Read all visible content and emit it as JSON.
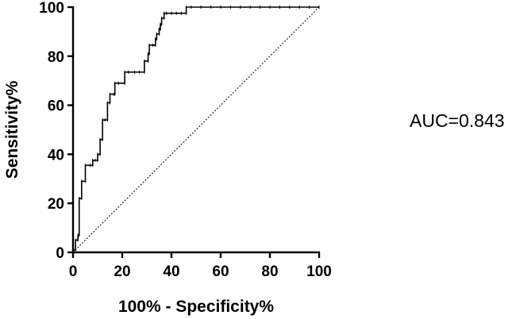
{
  "chart_data": {
    "type": "line",
    "title": "",
    "xlabel": "100% - Specificity%",
    "ylabel": "Sensitivity%",
    "xlim": [
      0,
      100
    ],
    "ylim": [
      0,
      100
    ],
    "x_ticks": [
      0,
      20,
      40,
      60,
      80,
      100
    ],
    "y_ticks": [
      0,
      20,
      40,
      60,
      80,
      100
    ],
    "x_tick_labels": [
      "0",
      "20",
      "40",
      "60",
      "80",
      "100"
    ],
    "y_tick_labels": [
      "0",
      "20",
      "40",
      "60",
      "80",
      "100"
    ],
    "grid": false,
    "legend": "none",
    "annotation": "AUC=0.843",
    "series": [
      {
        "type": "roc",
        "style": "step-with-markers",
        "color": "#000000",
        "points": [
          [
            0,
            0
          ],
          [
            0,
            1
          ],
          [
            1,
            1
          ],
          [
            1,
            3
          ],
          [
            1,
            5
          ],
          [
            2,
            5
          ],
          [
            2,
            7
          ],
          [
            2.5,
            7
          ],
          [
            2.5,
            14
          ],
          [
            2.5,
            22
          ],
          [
            3.5,
            22
          ],
          [
            3.5,
            25
          ],
          [
            3.5,
            29
          ],
          [
            5,
            29
          ],
          [
            5,
            33
          ],
          [
            5,
            35.5
          ],
          [
            7,
            35.5
          ],
          [
            8,
            35.5
          ],
          [
            8,
            37.5
          ],
          [
            9,
            37.5
          ],
          [
            10,
            37.5
          ],
          [
            10,
            40
          ],
          [
            11,
            40
          ],
          [
            11,
            42
          ],
          [
            11,
            46
          ],
          [
            12,
            46
          ],
          [
            12,
            51
          ],
          [
            12,
            54
          ],
          [
            13,
            54
          ],
          [
            14,
            54
          ],
          [
            14,
            58
          ],
          [
            14,
            61
          ],
          [
            15,
            61
          ],
          [
            15,
            63
          ],
          [
            15,
            64.5
          ],
          [
            16.5,
            64.5
          ],
          [
            17,
            64.5
          ],
          [
            17,
            67
          ],
          [
            17,
            69
          ],
          [
            18.5,
            69
          ],
          [
            21,
            69
          ],
          [
            21,
            70
          ],
          [
            21,
            73.5
          ],
          [
            22.5,
            73.5
          ],
          [
            25,
            73.5
          ],
          [
            27,
            73.5
          ],
          [
            29,
            73.5
          ],
          [
            29,
            75.5
          ],
          [
            29,
            78
          ],
          [
            30.5,
            78
          ],
          [
            30.5,
            81
          ],
          [
            31,
            81
          ],
          [
            31,
            83
          ],
          [
            31,
            84.5
          ],
          [
            32.5,
            84.5
          ],
          [
            33.5,
            84.5
          ],
          [
            33.5,
            87
          ],
          [
            34,
            87
          ],
          [
            34,
            89
          ],
          [
            35,
            89
          ],
          [
            35,
            91
          ],
          [
            35.5,
            91
          ],
          [
            35.5,
            93
          ],
          [
            36,
            93
          ],
          [
            36,
            95.5
          ],
          [
            37,
            95.5
          ],
          [
            37,
            97.5
          ],
          [
            38,
            97.5
          ],
          [
            40,
            97.5
          ],
          [
            42,
            97.5
          ],
          [
            44,
            97.5
          ],
          [
            46,
            97.5
          ],
          [
            46,
            100
          ],
          [
            48,
            100
          ],
          [
            52,
            100
          ],
          [
            56,
            100
          ],
          [
            60,
            100
          ],
          [
            64,
            100
          ],
          [
            68,
            100
          ],
          [
            72,
            100
          ],
          [
            76,
            100
          ],
          [
            80,
            100
          ],
          [
            84,
            100
          ],
          [
            88,
            100
          ],
          [
            92,
            100
          ],
          [
            96,
            100
          ],
          [
            100,
            100
          ]
        ]
      },
      {
        "type": "reference",
        "style": "dotted",
        "color": "#000000",
        "points": [
          [
            0,
            0
          ],
          [
            100,
            100
          ]
        ]
      }
    ]
  }
}
